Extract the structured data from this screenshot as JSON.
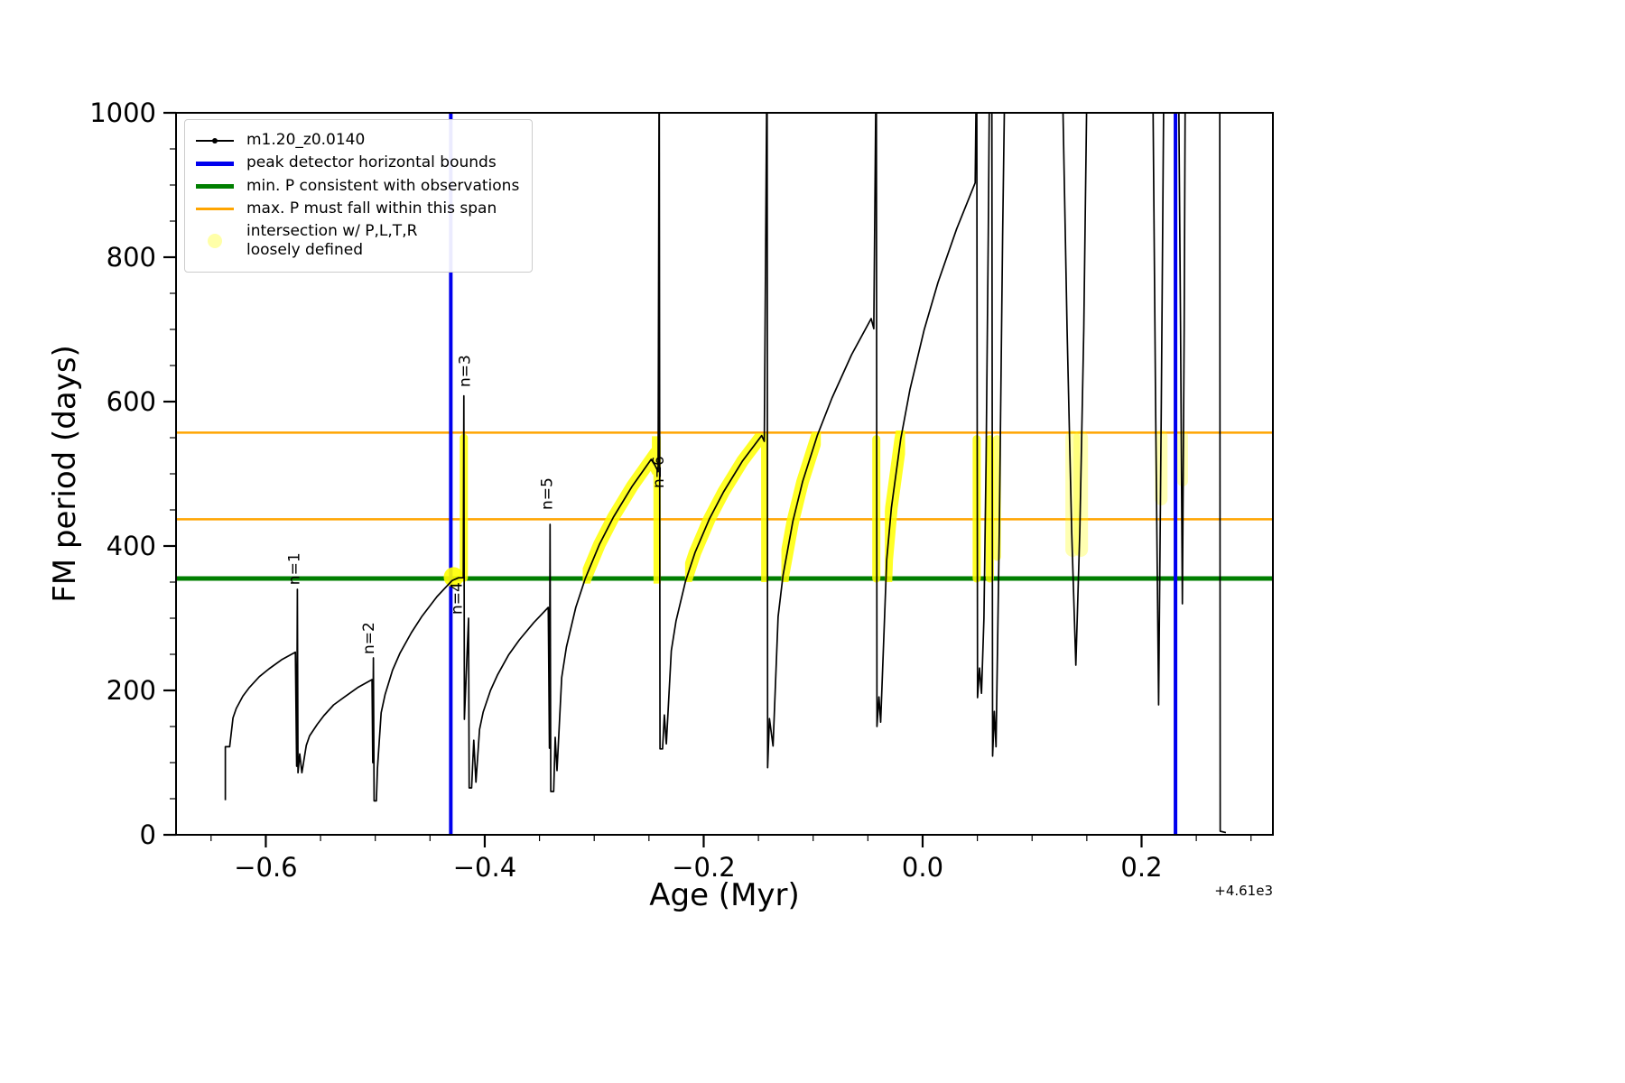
{
  "axes": {
    "xlabel": "Age (Myr)",
    "ylabel": "FM period (days)",
    "x_offset_text": "+4.61e3",
    "xlim": [
      -0.682,
      0.32
    ],
    "ylim": [
      0,
      1000
    ],
    "xticks": [
      {
        "v": -0.6,
        "label": "−0.6"
      },
      {
        "v": -0.4,
        "label": "−0.4"
      },
      {
        "v": -0.2,
        "label": "−0.2"
      },
      {
        "v": 0.0,
        "label": "0.0"
      },
      {
        "v": 0.2,
        "label": "0.2"
      }
    ],
    "yticks": [
      {
        "v": 0,
        "label": "0"
      },
      {
        "v": 200,
        "label": "200"
      },
      {
        "v": 400,
        "label": "400"
      },
      {
        "v": 600,
        "label": "600"
      },
      {
        "v": 800,
        "label": "800"
      },
      {
        "v": 1000,
        "label": "1000"
      }
    ],
    "x_minor_step": 0.05,
    "y_minor_step": 50,
    "x_major_step": 0.2,
    "y_major_step": 200
  },
  "legend": {
    "entries": [
      {
        "label": "m1.20_z0.0140",
        "type": "marker-line",
        "color": "#000000"
      },
      {
        "label": "peak detector horizontal bounds",
        "type": "thick-line",
        "color": "#0000ee"
      },
      {
        "label": "min. P consistent with observations",
        "type": "thick-line",
        "color": "#007f00"
      },
      {
        "label": "max. P must fall within this span",
        "type": "line",
        "color": "#ffa500"
      },
      {
        "label": "intersection w/ P,L,T,R\nloosely defined",
        "type": "dot",
        "color": "#ffffa8"
      }
    ]
  },
  "chart_data": {
    "type": "line",
    "title": "",
    "xlabel": "Age (Myr)",
    "ylabel": "FM period (days)",
    "x_offset": "+4.61e3",
    "xlim": [
      -0.682,
      0.32
    ],
    "ylim": [
      0,
      1000
    ],
    "series": [
      {
        "name": "m1.20_z0.0140",
        "color": "#000000",
        "points": [
          [
            -0.637,
            48
          ],
          [
            -0.637,
            122
          ],
          [
            -0.633,
            122
          ],
          [
            -0.63,
            162
          ],
          [
            -0.627,
            175
          ],
          [
            -0.621,
            192
          ],
          [
            -0.615,
            204
          ],
          [
            -0.606,
            219
          ],
          [
            -0.597,
            230
          ],
          [
            -0.585,
            243
          ],
          [
            -0.573,
            253
          ],
          [
            -0.5718,
            95
          ],
          [
            -0.5712,
            340
          ],
          [
            -0.5706,
            86
          ],
          [
            -0.569,
            112
          ],
          [
            -0.567,
            86
          ],
          [
            -0.563,
            124
          ],
          [
            -0.56,
            137
          ],
          [
            -0.553,
            153
          ],
          [
            -0.547,
            165
          ],
          [
            -0.538,
            180
          ],
          [
            -0.528,
            191
          ],
          [
            -0.516,
            204
          ],
          [
            -0.503,
            215
          ],
          [
            -0.5023,
            100
          ],
          [
            -0.5017,
            245
          ],
          [
            -0.5011,
            47
          ],
          [
            -0.499,
            47
          ],
          [
            -0.498,
            92
          ],
          [
            -0.4946,
            169
          ],
          [
            -0.4911,
            194
          ],
          [
            -0.4842,
            228
          ],
          [
            -0.4773,
            252
          ],
          [
            -0.467,
            280
          ],
          [
            -0.4572,
            303
          ],
          [
            -0.4436,
            330
          ],
          [
            -0.43,
            352
          ],
          [
            -0.424,
            356
          ],
          [
            -0.4196,
            356
          ],
          [
            -0.4191,
            608
          ],
          [
            -0.4186,
            160
          ],
          [
            -0.4148,
            300
          ],
          [
            -0.4142,
            65
          ],
          [
            -0.412,
            65
          ],
          [
            -0.41,
            131
          ],
          [
            -0.408,
            73
          ],
          [
            -0.4047,
            146
          ],
          [
            -0.4014,
            170
          ],
          [
            -0.3948,
            200
          ],
          [
            -0.3882,
            222
          ],
          [
            -0.3783,
            249
          ],
          [
            -0.3684,
            270
          ],
          [
            -0.3552,
            294
          ],
          [
            -0.342,
            315
          ],
          [
            -0.3409,
            120
          ],
          [
            -0.3403,
            430
          ],
          [
            -0.3397,
            60
          ],
          [
            -0.337,
            60
          ],
          [
            -0.3356,
            135
          ],
          [
            -0.334,
            89
          ],
          [
            -0.3297,
            218
          ],
          [
            -0.3254,
            260
          ],
          [
            -0.3168,
            315
          ],
          [
            -0.3082,
            355
          ],
          [
            -0.2953,
            402
          ],
          [
            -0.2824,
            440
          ],
          [
            -0.2652,
            483
          ],
          [
            -0.248,
            520
          ],
          [
            -0.2446,
            512
          ],
          [
            -0.2416,
            503
          ],
          [
            -0.2406,
            1100
          ],
          [
            -0.2399,
            119
          ],
          [
            -0.2376,
            119
          ],
          [
            -0.2359,
            166
          ],
          [
            -0.2341,
            126
          ],
          [
            -0.2296,
            255
          ],
          [
            -0.2253,
            296
          ],
          [
            -0.2166,
            351
          ],
          [
            -0.2079,
            391
          ],
          [
            -0.1949,
            437
          ],
          [
            -0.1818,
            475
          ],
          [
            -0.1644,
            518
          ],
          [
            -0.147,
            553
          ],
          [
            -0.1446,
            545
          ],
          [
            -0.1421,
            1100
          ],
          [
            -0.1416,
            93
          ],
          [
            -0.1399,
            161
          ],
          [
            -0.1366,
            123
          ],
          [
            -0.132,
            302
          ],
          [
            -0.1276,
            359
          ],
          [
            -0.1186,
            434
          ],
          [
            -0.1097,
            489
          ],
          [
            -0.0962,
            553
          ],
          [
            -0.0828,
            605
          ],
          [
            -0.0649,
            665
          ],
          [
            -0.047,
            715
          ],
          [
            -0.0446,
            701
          ],
          [
            -0.0423,
            1100
          ],
          [
            -0.0417,
            150
          ],
          [
            -0.0399,
            191
          ],
          [
            -0.0383,
            156
          ],
          [
            -0.0328,
            381
          ],
          [
            -0.0285,
            453
          ],
          [
            -0.02,
            548
          ],
          [
            -0.0115,
            617
          ],
          [
            0.0013,
            699
          ],
          [
            0.014,
            765
          ],
          [
            0.031,
            839
          ],
          [
            0.048,
            903
          ],
          [
            0.0494,
            1100
          ],
          [
            0.0502,
            190
          ],
          [
            0.052,
            231
          ],
          [
            0.0538,
            196
          ],
          [
            0.056,
            300
          ],
          [
            0.058,
            520
          ],
          [
            0.06,
            830
          ],
          [
            0.0614,
            1100
          ],
          [
            0.0632,
            1100
          ],
          [
            0.0639,
            109
          ],
          [
            0.0655,
            171
          ],
          [
            0.0671,
            122
          ],
          [
            0.07,
            420
          ],
          [
            0.0731,
            830
          ],
          [
            0.0756,
            1100
          ],
          [
            0.127,
            1100
          ],
          [
            0.132,
            700
          ],
          [
            0.1362,
            420
          ],
          [
            0.14,
            235
          ],
          [
            0.1436,
            420
          ],
          [
            0.1472,
            700
          ],
          [
            0.1506,
            1100
          ],
          [
            0.21,
            1100
          ],
          [
            0.2128,
            600
          ],
          [
            0.2156,
            180
          ],
          [
            0.2181,
            600
          ],
          [
            0.2206,
            1100
          ],
          [
            0.2336,
            1100
          ],
          [
            0.2356,
            700
          ],
          [
            0.2373,
            320
          ],
          [
            0.2389,
            700
          ],
          [
            0.2401,
            1100
          ],
          [
            0.2714,
            1100
          ],
          [
            0.2718,
            5
          ],
          [
            0.277,
            3
          ]
        ]
      }
    ],
    "vlines": [
      {
        "x": -0.431,
        "color": "#0000ee",
        "width": 4,
        "label": "peak detector horizontal bounds"
      },
      {
        "x": 0.231,
        "color": "#0000ee",
        "width": 4,
        "label": ""
      }
    ],
    "hlines": [
      {
        "y": 355,
        "color": "#007f00",
        "width": 5,
        "label": "min. P consistent with observations"
      },
      {
        "y": 437,
        "color": "#ffa500",
        "width": 2.5,
        "label": ""
      },
      {
        "y": 557,
        "color": "#ffa500",
        "width": 2.5,
        "label": "max. P must fall within this span"
      }
    ],
    "highlights": [
      {
        "type": "dot",
        "x": -0.4284,
        "y": 357,
        "r": 11,
        "alpha": 0.9
      },
      {
        "type": "vline",
        "x": -0.4191,
        "y1": 356,
        "y2": 550,
        "w": 9,
        "alpha": 0.85
      },
      {
        "type": "curve",
        "x1": -0.3105,
        "x2": -0.2392,
        "y1": 348,
        "y2": 552,
        "w": 14,
        "alpha": 0.85
      },
      {
        "type": "curve",
        "x1": -0.217,
        "x2": -0.141,
        "y1": 350,
        "y2": 556,
        "w": 14,
        "alpha": 0.85
      },
      {
        "type": "curve",
        "x1": -0.129,
        "x2": -0.093,
        "y1": 350,
        "y2": 558,
        "w": 14,
        "alpha": 0.85
      },
      {
        "type": "vline",
        "x": -0.0423,
        "y1": 355,
        "y2": 548,
        "w": 9,
        "alpha": 0.85
      },
      {
        "type": "curve",
        "x1": -0.0345,
        "x2": -0.016,
        "y1": 350,
        "y2": 560,
        "w": 14,
        "alpha": 0.85
      },
      {
        "type": "vline",
        "x": 0.0494,
        "y1": 355,
        "y2": 548,
        "w": 9,
        "alpha": 0.85
      },
      {
        "type": "vline",
        "x": 0.0614,
        "y1": 355,
        "y2": 548,
        "w": 9,
        "alpha": 0.8
      },
      {
        "type": "vline",
        "x": 0.068,
        "y1": 385,
        "y2": 548,
        "w": 9,
        "alpha": 0.55
      },
      {
        "type": "vline",
        "x": 0.137,
        "y1": 395,
        "y2": 550,
        "w": 16,
        "alpha": 0.3
      },
      {
        "type": "vline",
        "x": 0.1445,
        "y1": 395,
        "y2": 550,
        "w": 16,
        "alpha": 0.3
      },
      {
        "type": "vline",
        "x": 0.218,
        "y1": 465,
        "y2": 552,
        "w": 14,
        "alpha": 0.3
      },
      {
        "type": "vline",
        "x": 0.2375,
        "y1": 490,
        "y2": 552,
        "w": 12,
        "alpha": 0.3
      }
    ],
    "annotations": [
      {
        "text": "n=1",
        "x": -0.5695,
        "y": 346,
        "rotation": 90
      },
      {
        "text": "n=2",
        "x": -0.5015,
        "y": 250,
        "rotation": 90
      },
      {
        "text": "n=3",
        "x": -0.4135,
        "y": 620,
        "rotation": 90
      },
      {
        "text": "n=4",
        "x": -0.421,
        "y": 305,
        "rotation": 90
      },
      {
        "text": "n=5",
        "x": -0.3385,
        "y": 450,
        "rotation": 90
      },
      {
        "text": "n=6",
        "x": -0.2368,
        "y": 480,
        "rotation": 90
      }
    ],
    "highlight_color": "#ffff00",
    "legend_position": "upper left",
    "grid": false
  }
}
